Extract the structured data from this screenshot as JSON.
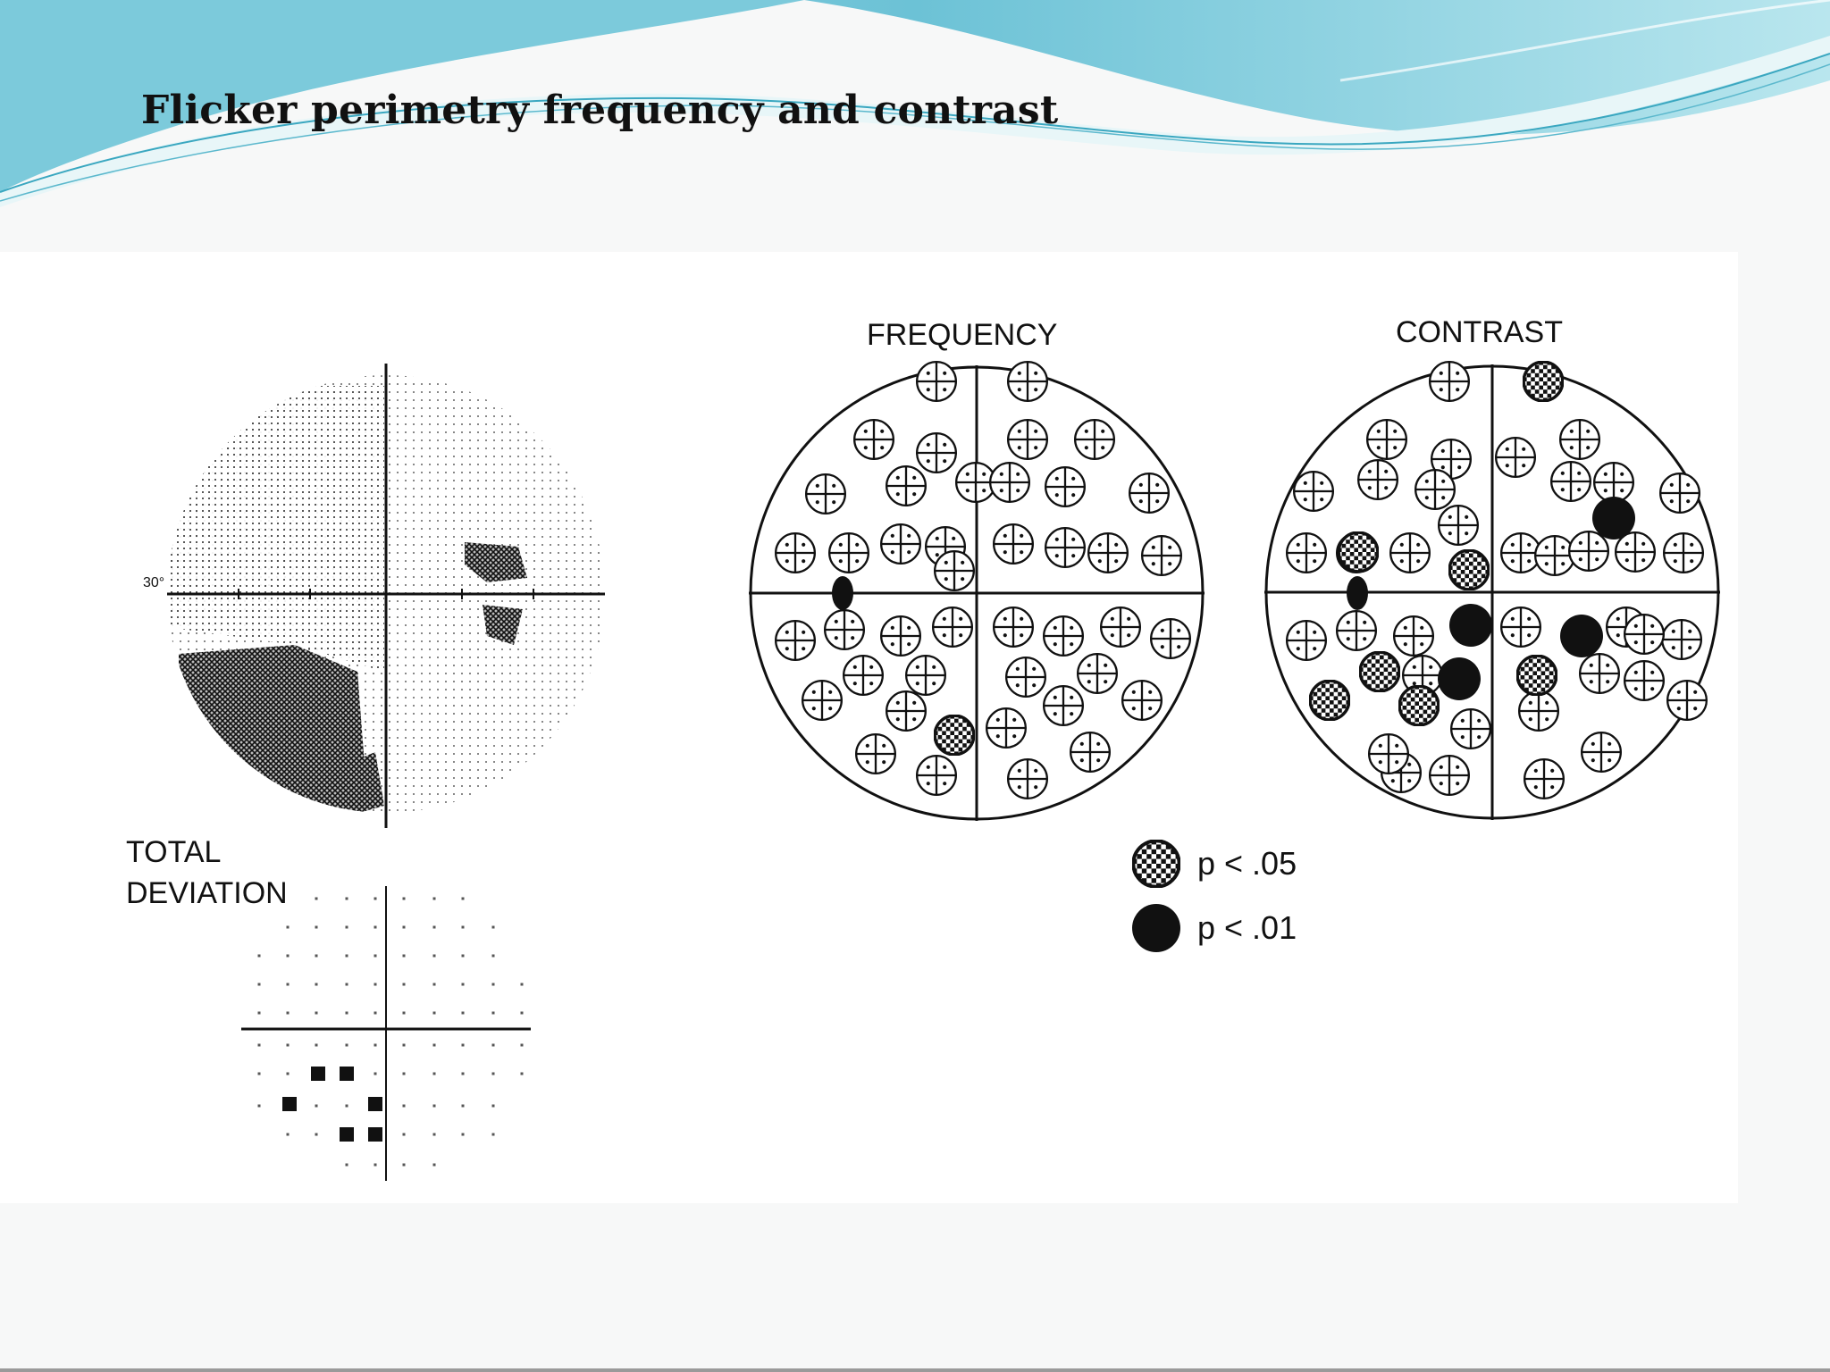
{
  "slide": {
    "title": "Flicker  perimetry  frequency  and contrast"
  },
  "figure": {
    "total_deviation_label_line1": "TOTAL",
    "total_deviation_label_line2": "DEVIATION",
    "degree_label": "30°",
    "frequency_title": "FREQUENCY",
    "contrast_title": "CONTRAST",
    "legend": [
      {
        "symbol": "checkered-circle",
        "text": "p < .05"
      },
      {
        "symbol": "filled-circle",
        "text": "p < .01"
      }
    ],
    "frequency_map": {
      "p05_count": 1,
      "p01_count": 1
    },
    "contrast_map": {
      "p05_count": 7,
      "p01_count": 5
    },
    "total_deviation_map": {
      "filled_squares": 6
    }
  },
  "colors": {
    "banner_light": "#cdeef3",
    "banner_mid": "#7cc9d8",
    "banner_dark": "#4fb3cb",
    "ink": "#111111"
  }
}
